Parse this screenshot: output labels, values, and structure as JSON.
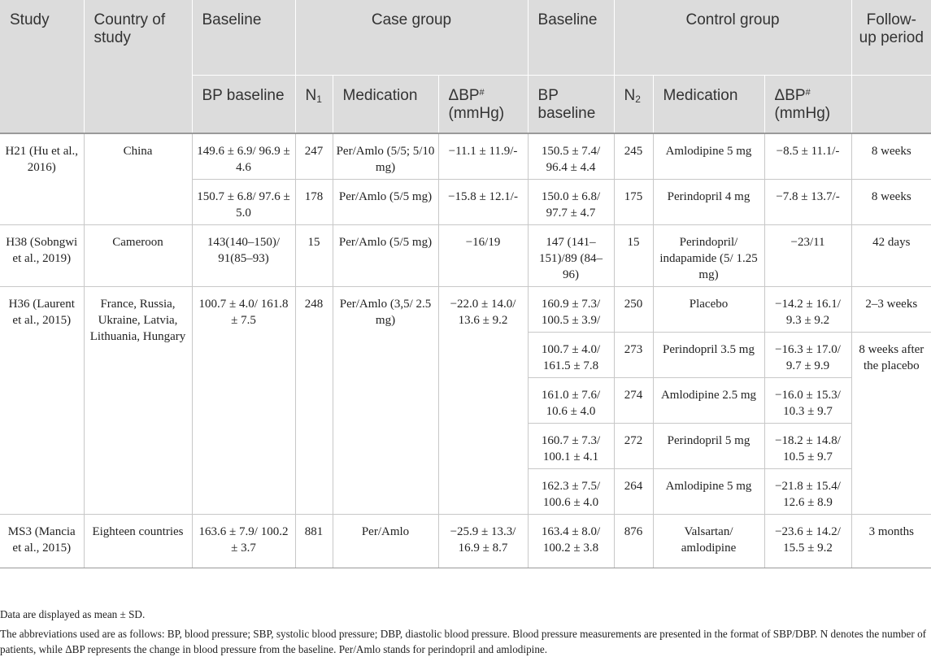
{
  "header": {
    "study": "Study",
    "country": "Country of study",
    "baseline_case": "Baseline",
    "case_group": "Case group",
    "baseline_control": "Baseline",
    "control_group": "Control group",
    "follow_up": "Follow-up period",
    "bp_baseline": "BP baseline",
    "n1_letter": "N",
    "n1_sub": "1",
    "medication_case": "Medication",
    "delta_case_symbol": "ΔBP",
    "delta_case_sup": "#",
    "delta_case_unit": "(mmHg)",
    "bp_baseline_control": "BP baseline",
    "n2_letter": "N",
    "n2_sub": "2",
    "medication_control": "Medication",
    "delta_control_symbol": "ΔBP",
    "delta_control_sup": "#",
    "delta_control_unit": "(mmHg)"
  },
  "rows": [
    {
      "study": "H21 (Hu et al., 2016)",
      "country": "China",
      "case_bp": "149.6 ± 6.9/ 96.9 ± 4.6",
      "n1": "247",
      "case_med": "Per/Amlo (5/5; 5/10 mg)",
      "case_dbp": "−11.1 ± 11.9/-",
      "ctrl_bp": "150.5 ± 7.4/ 96.4 ± 4.4",
      "n2": "245",
      "ctrl_med": "Amlodipine 5 mg",
      "ctrl_dbp": "−8.5 ± 11.1/-",
      "follow": "8 weeks"
    },
    {
      "case_bp": "150.7 ± 6.8/ 97.6 ± 5.0",
      "n1": "178",
      "case_med": "Per/Amlo (5/5 mg)",
      "case_dbp": "−15.8 ± 12.1/-",
      "ctrl_bp": "150.0 ± 6.8/ 97.7 ± 4.7",
      "n2": "175",
      "ctrl_med": "Perindopril 4 mg",
      "ctrl_dbp": "−7.8 ± 13.7/-",
      "follow": "8 weeks"
    },
    {
      "study": "H38 (Sobngwi et al., 2019)",
      "country": "Cameroon",
      "case_bp": "143(140–150)/ 91(85–93)",
      "n1": "15",
      "case_med": "Per/Amlo (5/5 mg)",
      "case_dbp": "−16/19",
      "ctrl_bp": "147 (141–151)/89 (84–96)",
      "n2": "15",
      "ctrl_med": "Perindopril/ indapamide (5/ 1.25 mg)",
      "ctrl_dbp": "−23/11",
      "follow": "42 days"
    },
    {
      "study": "H36 (Laurent et al., 2015)",
      "country": "France, Russia, Ukraine, Latvia, Lithuania, Hungary",
      "case_bp": "100.7 ± 4.0/ 161.8 ± 7.5",
      "n1": "248",
      "case_med": "Per/Amlo (3,5/ 2.5 mg)",
      "case_dbp": "−22.0 ± 14.0/ 13.6 ± 9.2",
      "ctrl_bp": "160.9 ± 7.3/ 100.5 ± 3.9/",
      "n2": "250",
      "ctrl_med": "Placebo",
      "ctrl_dbp": "−14.2 ± 16.1/ 9.3 ± 9.2",
      "follow": "2–3 weeks"
    },
    {
      "ctrl_bp": "100.7 ± 4.0/ 161.5 ± 7.8",
      "n2": "273",
      "ctrl_med": "Perindopril 3.5 mg",
      "ctrl_dbp": "−16.3 ± 17.0/ 9.7 ± 9.9",
      "follow": "8 weeks after the placebo"
    },
    {
      "ctrl_bp": "161.0 ± 7.6/ 10.6 ± 4.0",
      "n2": "274",
      "ctrl_med": "Amlodipine 2.5 mg",
      "ctrl_dbp": "−16.0 ± 15.3/ 10.3 ± 9.7"
    },
    {
      "ctrl_bp": "160.7 ± 7.3/ 100.1 ± 4.1",
      "n2": "272",
      "ctrl_med": "Perindopril 5 mg",
      "ctrl_dbp": "−18.2 ± 14.8/ 10.5 ± 9.7"
    },
    {
      "ctrl_bp": "162.3 ± 7.5/ 100.6 ± 4.0",
      "n2": "264",
      "ctrl_med": "Amlodipine 5 mg",
      "ctrl_dbp": "−21.8 ± 15.4/ 12.6 ± 8.9"
    },
    {
      "study": "MS3 (Mancia et al., 2015)",
      "country": "Eighteen countries",
      "case_bp": "163.6 ± 7.9/ 100.2 ± 3.7",
      "n1": "881",
      "case_med": "Per/Amlo",
      "case_dbp": "−25.9 ± 13.3/ 16.9 ± 8.7",
      "ctrl_bp": "163.4 ± 8.0/ 100.2 ± 3.8",
      "n2": "876",
      "ctrl_med": "Valsartan/ amlodipine",
      "ctrl_dbp": "−23.6 ± 14.2/ 15.5 ± 9.2",
      "follow": "3 months"
    }
  ],
  "notes": {
    "note1": "Data are displayed as mean ± SD.",
    "note2": "The abbreviations used are as follows: BP, blood pressure; SBP, systolic blood pressure; DBP, diastolic blood pressure. Blood pressure measurements are presented in the format of SBP/DBP. N denotes the number of patients, while ΔBP represents the change in blood pressure from the baseline. Per/Amlo stands for perindopril and amlodipine."
  }
}
